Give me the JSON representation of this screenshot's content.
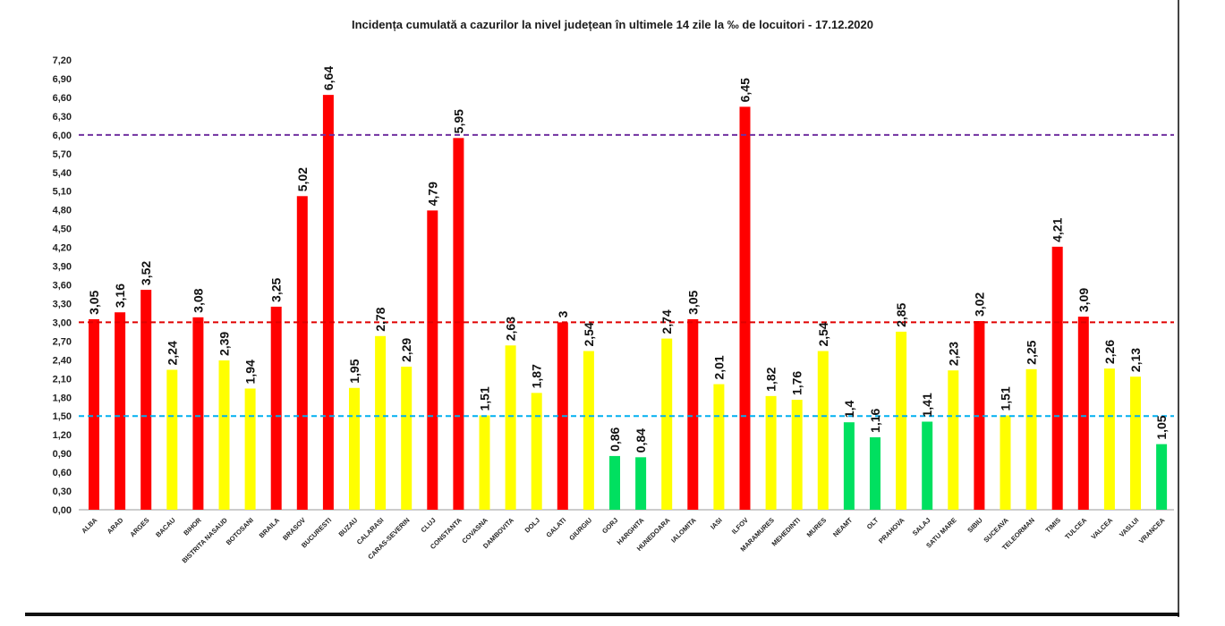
{
  "chart_data": {
    "type": "bar",
    "title": "Incidența cumulată a cazurilor la nivel județean în ultimele 14 zile la ‰ de locuitori - 17.12.2020",
    "xlabel": "",
    "ylabel": "",
    "ylim": [
      0,
      7.2
    ],
    "yticks": [
      "0,00",
      "0,30",
      "0,60",
      "0,90",
      "1,20",
      "1,50",
      "1,80",
      "2,10",
      "2,40",
      "2,70",
      "3,00",
      "3,30",
      "3,60",
      "3,90",
      "4,20",
      "4,50",
      "4,80",
      "5,10",
      "5,40",
      "5,70",
      "6,00",
      "6,30",
      "6,60",
      "6,90",
      "7,20"
    ],
    "grid": false,
    "legend": "none",
    "categories": [
      "ALBA",
      "ARAD",
      "ARGES",
      "BACAU",
      "BIHOR",
      "BISTRITA NASAUD",
      "BOTOSANI",
      "BRAILA",
      "BRASOV",
      "BUCURESTI",
      "BUZAU",
      "CALARASI",
      "CARAS-SEVERIN",
      "CLUJ",
      "CONSTANTA",
      "COVASNA",
      "DAMBOVITA",
      "DOLJ",
      "GALATI",
      "GIURGIU",
      "GORJ",
      "HARGHITA",
      "HUNEDOARA",
      "IALOMITA",
      "IASI",
      "ILFOV",
      "MARAMURES",
      "MEHEDINTI",
      "MURES",
      "NEAMT",
      "OLT",
      "PRAHOVA",
      "SALAJ",
      "SATU MARE",
      "SIBIU",
      "SUCEAVA",
      "TELEORMAN",
      "TIMIS",
      "TULCEA",
      "VALCEA",
      "VASLUI",
      "VRANCEA"
    ],
    "values": [
      3.05,
      3.16,
      3.52,
      2.24,
      3.08,
      2.39,
      1.94,
      3.25,
      5.02,
      6.64,
      1.95,
      2.78,
      2.29,
      4.79,
      5.95,
      1.51,
      2.63,
      1.87,
      3,
      2.54,
      0.86,
      0.84,
      2.74,
      3.05,
      2.01,
      6.45,
      1.82,
      1.76,
      2.54,
      1.4,
      1.16,
      2.85,
      1.41,
      2.23,
      3.02,
      1.51,
      2.25,
      4.21,
      3.09,
      2.26,
      2.13,
      1.05
    ],
    "value_labels": [
      "3,05",
      "3,16",
      "3,52",
      "2,24",
      "3,08",
      "2,39",
      "1,94",
      "3,25",
      "5,02",
      "6,64",
      "1,95",
      "2,78",
      "2,29",
      "4,79",
      "5,95",
      "1,51",
      "2,63",
      "1,87",
      "3",
      "2,54",
      "0,86",
      "0,84",
      "2,74",
      "3,05",
      "2,01",
      "6,45",
      "1,82",
      "1,76",
      "2,54",
      "1,4",
      "1,16",
      "2,85",
      "1,41",
      "2,23",
      "3,02",
      "1,51",
      "2,25",
      "4,21",
      "3,09",
      "2,26",
      "2,13",
      "1,05"
    ],
    "bar_colors": [
      "#ff0000",
      "#ff0000",
      "#ff0000",
      "#ffff00",
      "#ff0000",
      "#ffff00",
      "#ffff00",
      "#ff0000",
      "#ff0000",
      "#ff0000",
      "#ffff00",
      "#ffff00",
      "#ffff00",
      "#ff0000",
      "#ff0000",
      "#ffff00",
      "#ffff00",
      "#ffff00",
      "#ff0000",
      "#ffff00",
      "#00e060",
      "#00e060",
      "#ffff00",
      "#ff0000",
      "#ffff00",
      "#ff0000",
      "#ffff00",
      "#ffff00",
      "#ffff00",
      "#00e060",
      "#00e060",
      "#ffff00",
      "#00e060",
      "#ffff00",
      "#ff0000",
      "#ffff00",
      "#ffff00",
      "#ff0000",
      "#ff0000",
      "#ffff00",
      "#ffff00",
      "#00e060"
    ],
    "reference_lines": [
      {
        "value": 6.0,
        "color": "#7030a0"
      },
      {
        "value": 3.0,
        "color": "#e00000"
      },
      {
        "value": 1.5,
        "color": "#00b0f0"
      }
    ]
  }
}
